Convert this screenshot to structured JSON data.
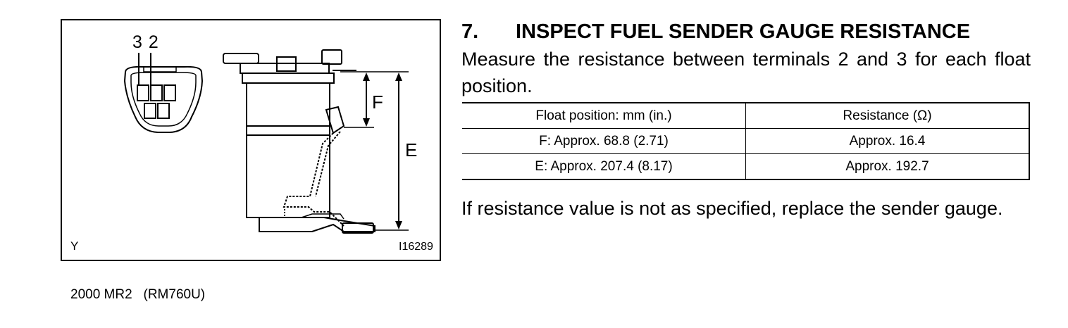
{
  "figure": {
    "terminal_labels": "3 2",
    "label_f": "F",
    "label_e": "E",
    "corner_mark": "Y",
    "figure_id": "I16289",
    "icon": "fuel-sender-gauge-illustration"
  },
  "section": {
    "number": "7.",
    "title": "INSPECT FUEL SENDER GAUGE RESISTANCE",
    "intro": "Measure the resistance between terminals 2 and 3 for each float position."
  },
  "table": {
    "headers": [
      "Float position: mm (in.)",
      "Resistance (Ω)"
    ],
    "rows": [
      [
        "F: Approx. 68.8 (2.71)",
        "Approx. 16.4"
      ],
      [
        "E: Approx. 207.4 (8.17)",
        "Approx. 192.7"
      ]
    ]
  },
  "note": "If resistance value is not as specified, replace the sender gauge.",
  "footer": "2000 MR2   (RM760U)"
}
